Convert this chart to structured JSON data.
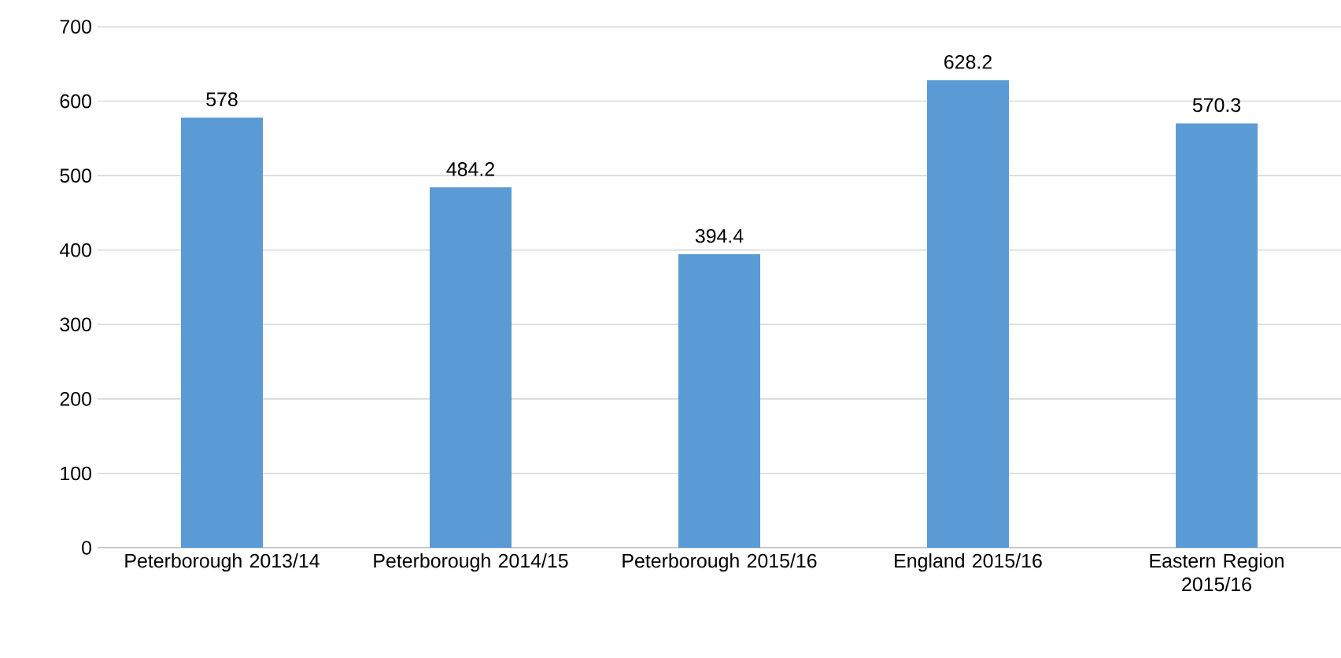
{
  "chart_data": {
    "type": "bar",
    "categories": [
      "Peterborough 2013/14",
      "Peterborough 2014/15",
      "Peterborough 2015/16",
      "England 2015/16",
      "Eastern Region 2015/16"
    ],
    "values": [
      578,
      484.2,
      394.4,
      628.2,
      570.3
    ],
    "color": "#5b9bd5",
    "ylim": [
      0,
      700
    ],
    "yticks": [
      0,
      100,
      200,
      300,
      400,
      500,
      600,
      700
    ],
    "grid": "y",
    "data_labels": true
  }
}
